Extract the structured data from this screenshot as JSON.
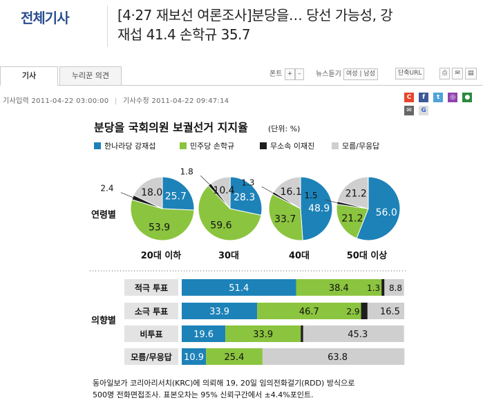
{
  "header": {
    "section": "전체기사",
    "headline_line1": "[4·27 재보선 여론조사]분당을… 당선 가능성, 강",
    "headline_line2": "재섭 41.4 손학규 35.7"
  },
  "tabs": [
    {
      "label": "기사",
      "active": true
    },
    {
      "label": "누리꾼 의견",
      "active": false
    }
  ],
  "tools": {
    "font_label": "폰트",
    "plus": "+",
    "minus": "–",
    "news_listen_label": "뉴스듣기",
    "female": "여성",
    "divider": "|",
    "male": "남성",
    "short_url": "단축URL"
  },
  "meta": {
    "published_label": "기사입력",
    "published": "2011-04-22 03:00:00",
    "modified_label": "기사수정",
    "modified": "2011-04-22 09:47:14"
  },
  "share": [
    {
      "glyph": "C",
      "color": "#e8452c"
    },
    {
      "glyph": "f",
      "color": "#3b5998"
    },
    {
      "glyph": "t",
      "color": "#4fa3d9"
    },
    {
      "glyph": "◎",
      "color": "#8e44ad"
    },
    {
      "glyph": "●",
      "color": "#2c8a3e"
    },
    {
      "glyph": "✉",
      "color": "#666666"
    },
    {
      "glyph": "G",
      "color": "#dddddd"
    }
  ],
  "chart_data": {
    "type": "pie",
    "title": "분당을 국회의원 보궐선거 지지율",
    "unit": "(단위: %)",
    "legend": [
      {
        "name": "한나라당 강재섭",
        "color": "#1d82b8"
      },
      {
        "name": "민주당 손학규",
        "color": "#8bc43f"
      },
      {
        "name": "무소속 이재진",
        "color": "#1e1e1e"
      },
      {
        "name": "모름/무응답",
        "color": "#cfcfcf"
      }
    ],
    "age_group_label": "연령별",
    "age_groups": [
      {
        "label": "20대 이하",
        "values": [
          25.7,
          53.9,
          2.4,
          18.0
        ]
      },
      {
        "label": "30대",
        "values": [
          28.3,
          59.6,
          1.8,
          10.4
        ]
      },
      {
        "label": "40대",
        "values": [
          48.9,
          33.7,
          1.3,
          16.1
        ]
      },
      {
        "label": "50대 이상",
        "values": [
          56.0,
          21.2,
          1.5,
          21.2
        ]
      }
    ],
    "intent_label": "의향별",
    "intent_groups": [
      {
        "label": "적극 투표",
        "values": [
          51.4,
          38.4,
          1.3,
          8.8
        ]
      },
      {
        "label": "소극 투표",
        "values": [
          33.9,
          46.7,
          2.9,
          16.5
        ]
      },
      {
        "label": "비투표",
        "values": [
          19.6,
          33.9,
          1.1,
          45.3
        ]
      },
      {
        "label": "모름/무응답",
        "values": [
          10.9,
          25.4,
          null,
          63.8
        ]
      }
    ],
    "source_line1": "동아일보가 코리아리서치(KRC)에 의뢰해 19, 20일 임의전화걸기(RDD) 방식으로",
    "source_line2": "500명 전화면접조사. 표본오차는 95% 신뢰구간에서 ±4.4%포인트."
  }
}
